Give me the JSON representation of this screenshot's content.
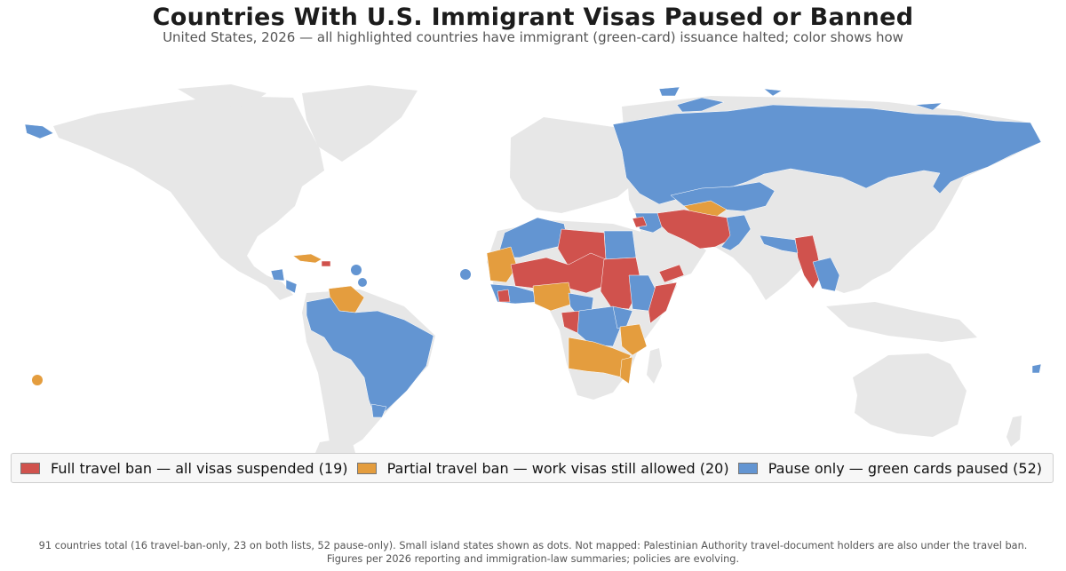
{
  "title": "Countries With U.S. Immigrant Visas Paused or Banned",
  "subtitle": "United States, 2026  —  all highlighted countries have immigrant (green-card) issuance halted; color shows how",
  "colors": {
    "ban": "#d0524d",
    "partial": "#e49d3e",
    "pause": "#6395d2",
    "land": "#e7e7e7",
    "background": "#ffffff"
  },
  "legend": [
    {
      "label": "Full travel ban — all visas suspended  (19)",
      "color": "#d0524d"
    },
    {
      "label": "Partial travel ban — work visas still allowed  (20)",
      "color": "#e49d3e"
    },
    {
      "label": "Pause only — green cards paused  (52)",
      "color": "#6395d2"
    }
  ],
  "footnote": {
    "line1": "91 countries total (16 travel-ban-only, 23 on both lists, 52 pause-only). Small island states shown as dots. Not mapped: Palestinian Authority travel-document holders are also under the travel ban.",
    "line2": "Figures per 2026 reporting and immigration-law summaries; policies are evolving."
  }
}
